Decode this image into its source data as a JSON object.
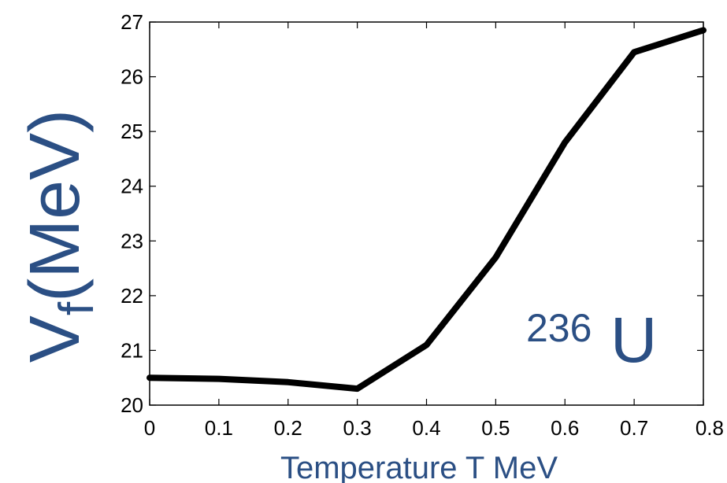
{
  "chart_data": {
    "type": "line",
    "xlabel": "Temperature T MeV",
    "ylabel_main": "V",
    "ylabel_sub": "f",
    "ylabel_rest": "(MeV)",
    "xlim": [
      0,
      0.8
    ],
    "ylim": [
      20,
      27
    ],
    "xticks": [
      "0",
      "0.1",
      "0.2",
      "0.3",
      "0.4",
      "0.5",
      "0.6",
      "0.7",
      "0.8"
    ],
    "yticks": [
      "20",
      "21",
      "22",
      "23",
      "24",
      "25",
      "26",
      "27"
    ],
    "grid": false,
    "annotation": {
      "superscript": "236",
      "text": "U"
    },
    "series": [
      {
        "x": [
          0,
          0.1,
          0.2,
          0.3,
          0.4,
          0.5,
          0.6,
          0.7,
          0.8
        ],
        "y": [
          20.5,
          20.48,
          20.42,
          20.3,
          21.1,
          22.7,
          24.8,
          26.45,
          26.85
        ]
      }
    ],
    "colors": {
      "line": "#000000",
      "label": "#2b4f84"
    }
  }
}
